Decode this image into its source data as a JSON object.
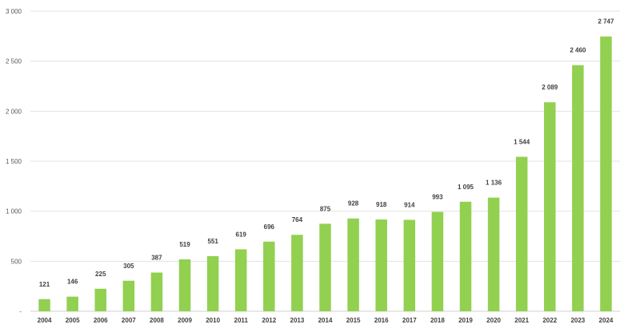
{
  "chart_data": {
    "type": "bar",
    "title": "",
    "xlabel": "",
    "ylabel": "",
    "categories": [
      "2004",
      "2005",
      "2006",
      "2007",
      "2008",
      "2009",
      "2010",
      "2011",
      "2012",
      "2013",
      "2014",
      "2015",
      "2016",
      "2017",
      "2018",
      "2019",
      "2020",
      "2021",
      "2022",
      "2023",
      "2024"
    ],
    "values": [
      121,
      146,
      225,
      305,
      387,
      519,
      551,
      619,
      696,
      764,
      875,
      928,
      918,
      914,
      993,
      1095,
      1136,
      1544,
      2089,
      2460,
      2747
    ],
    "value_labels": [
      "121",
      "146",
      "225",
      "305",
      "387",
      "519",
      "551",
      "619",
      "696",
      "764",
      "875",
      "928",
      "918",
      "914",
      "993",
      "1 095",
      "1 136",
      "1 544",
      "2 089",
      "2 460",
      "2 747"
    ],
    "ylim": [
      0,
      3000
    ],
    "yticks": [
      0,
      500,
      1000,
      1500,
      2000,
      2500,
      3000
    ],
    "ytick_labels": [
      "-",
      "500",
      "1 000",
      "1 500",
      "2 000",
      "2 500",
      "3 000"
    ],
    "grid": true,
    "legend": "none",
    "bar_color": "#92d050"
  }
}
